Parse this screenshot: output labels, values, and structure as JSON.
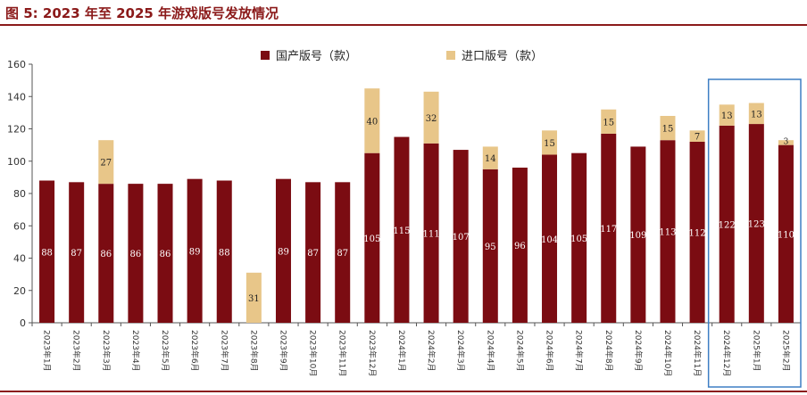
{
  "title": "图 5:  2023 年至 2025 年游戏版号发放情况",
  "colors": {
    "domestic": "#7b0c12",
    "imported": "#e8c689",
    "accent": "#8b1a1a",
    "highlight_box": "#3d7ec4"
  },
  "legend": {
    "domestic": "国产版号（款）",
    "imported": "进口版号（款）"
  },
  "chart_data": {
    "type": "bar",
    "stacked": true,
    "title": "图 5:  2023 年至 2025 年游戏版号发放情况",
    "xlabel": "",
    "ylabel": "",
    "ylim": [
      0,
      160
    ],
    "yticks": [
      0,
      20,
      40,
      60,
      80,
      100,
      120,
      140,
      160
    ],
    "grid": false,
    "legend_position": "top-center",
    "categories": [
      "2023年1月",
      "2023年2月",
      "2023年3月",
      "2023年4月",
      "2023年5月",
      "2023年6月",
      "2023年7月",
      "2023年8月",
      "2023年9月",
      "2023年10月",
      "2023年11月",
      "2023年12月",
      "2024年1月",
      "2024年2月",
      "2024年3月",
      "2024年4月",
      "2024年5月",
      "2024年6月",
      "2024年7月",
      "2024年8月",
      "2024年9月",
      "2024年10月",
      "2024年11月",
      "2024年12月",
      "2025年1月",
      "2025年2月"
    ],
    "series": [
      {
        "name": "国产版号（款）",
        "values": [
          88,
          87,
          86,
          86,
          86,
          89,
          88,
          0,
          89,
          87,
          87,
          105,
          115,
          111,
          107,
          95,
          96,
          104,
          105,
          117,
          109,
          113,
          112,
          122,
          123,
          110
        ]
      },
      {
        "name": "进口版号（款）",
        "values": [
          0,
          0,
          27,
          0,
          0,
          0,
          0,
          31,
          0,
          0,
          0,
          40,
          0,
          32,
          0,
          14,
          0,
          15,
          0,
          15,
          0,
          15,
          7,
          13,
          13,
          3
        ]
      }
    ],
    "highlighted_categories": [
      "2024年12月",
      "2025年1月",
      "2025年2月"
    ]
  }
}
